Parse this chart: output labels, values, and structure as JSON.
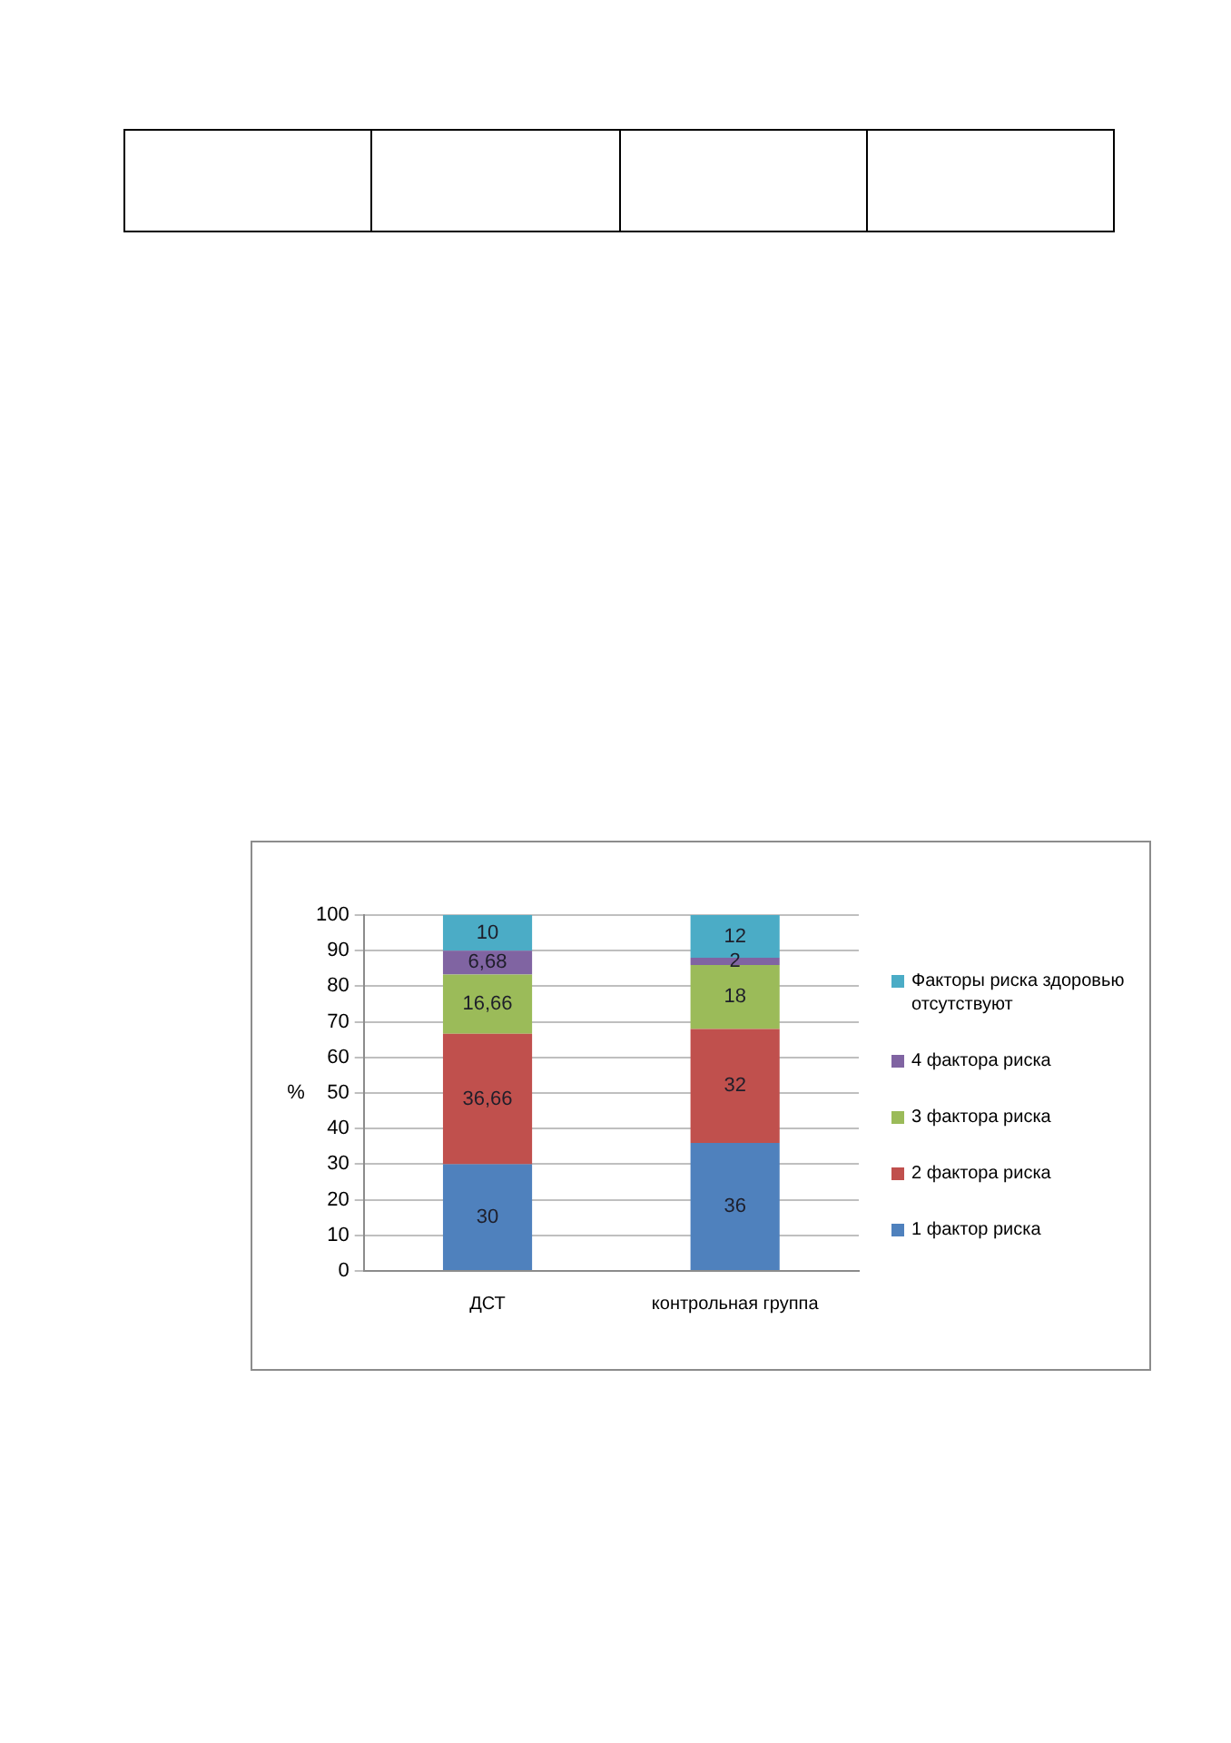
{
  "chart_data": {
    "type": "bar",
    "stacked": true,
    "categories": [
      "ДСТ",
      "контрольная группа"
    ],
    "series": [
      {
        "name": "1 фактор риска",
        "color": "#4f81bd",
        "values": [
          30,
          36
        ],
        "value_labels": [
          "30",
          "36"
        ]
      },
      {
        "name": "2 фактора риска",
        "color": "#c0504d",
        "values": [
          36.66,
          32
        ],
        "value_labels": [
          "36,66",
          "32"
        ]
      },
      {
        "name": "3 фактора риска",
        "color": "#9bbb59",
        "values": [
          16.66,
          18
        ],
        "value_labels": [
          "16,66",
          "18"
        ]
      },
      {
        "name": "4 фактора риска",
        "color": "#8064a2",
        "values": [
          6.68,
          2
        ],
        "value_labels": [
          "6,68",
          "2"
        ]
      },
      {
        "name": "Факторы риска здоровью отсутствуют",
        "color": "#4bacc6",
        "values": [
          10,
          12
        ],
        "value_labels": [
          "10",
          "12"
        ]
      }
    ],
    "ylabel": "%",
    "ylim": [
      0,
      100
    ],
    "yticks": [
      0,
      10,
      20,
      30,
      40,
      50,
      60,
      70,
      80,
      90,
      100
    ],
    "grid": "y",
    "legend": "right"
  }
}
